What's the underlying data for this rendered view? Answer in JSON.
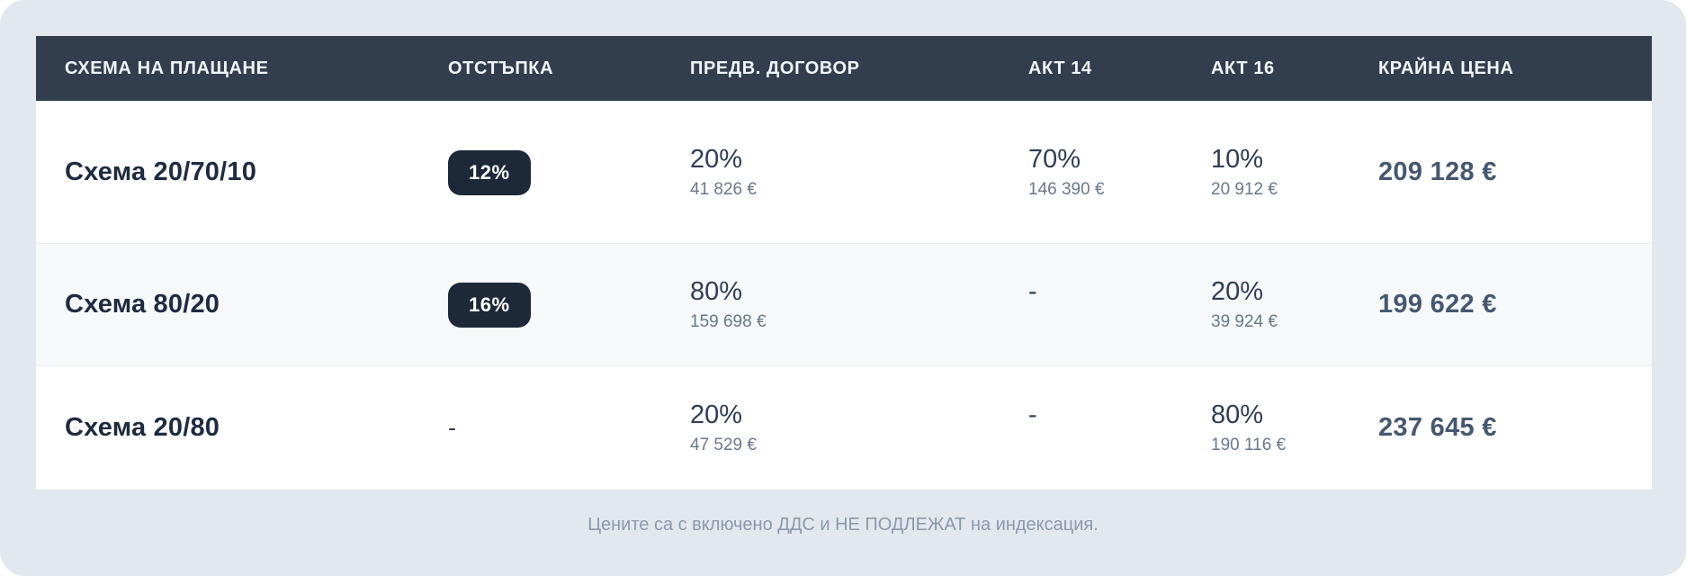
{
  "table": {
    "columns": [
      {
        "label": "СХЕМА НА ПЛАЩАНЕ"
      },
      {
        "label": "ОТСТЪПКА"
      },
      {
        "label": "ПРЕДВ. ДОГОВОР"
      },
      {
        "label": "АКТ 14"
      },
      {
        "label": "АКТ 16"
      },
      {
        "label": "КРАЙНА ЦЕНА"
      }
    ],
    "rows": [
      {
        "scheme": "Схема 20/70/10",
        "discount": "12%",
        "prelim_pct": "20%",
        "prelim_amount": "41 826 €",
        "act14_pct": "70%",
        "act14_amount": "146 390 €",
        "act16_pct": "10%",
        "act16_amount": "20 912 €",
        "final": "209 128 €"
      },
      {
        "scheme": "Схема 80/20",
        "discount": "16%",
        "prelim_pct": "80%",
        "prelim_amount": "159 698 €",
        "act14_pct": "-",
        "act14_amount": "",
        "act16_pct": "20%",
        "act16_amount": "39 924 €",
        "final": "199 622 €"
      },
      {
        "scheme": "Схема 20/80",
        "discount": "-",
        "prelim_pct": "20%",
        "prelim_amount": "47 529 €",
        "act14_pct": "-",
        "act14_amount": "",
        "act16_pct": "80%",
        "act16_amount": "190 116 €",
        "final": "237 645 €"
      }
    ]
  },
  "footer": {
    "note": "Цените са с включено ДДС и НЕ ПОДЛЕЖАТ на индексация."
  },
  "colors": {
    "page_background": "#e2e8ee",
    "header_background": "#323e4e",
    "badge_background": "#1d2939",
    "row_alt_background": "#f6f8fa",
    "scheme_text": "#1e2b42",
    "price_text": "#465870",
    "amount_text": "#69788c",
    "footnote_text": "#8a99ac"
  }
}
